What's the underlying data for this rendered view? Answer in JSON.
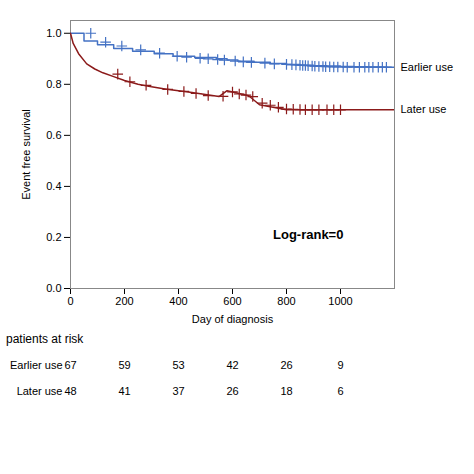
{
  "chart_data": {
    "type": "line",
    "xlabel": "Day of diagnosis",
    "ylabel": "Event free survival",
    "xlim": [
      0,
      1200
    ],
    "ylim": [
      0.0,
      1.05
    ],
    "xticks": [
      0,
      200,
      400,
      600,
      800,
      1000
    ],
    "yticks": [
      {
        "value": 0.0,
        "label": "0.0"
      },
      0.2,
      0.4,
      0.6,
      0.8,
      {
        "value": 1.0,
        "label": "1.0"
      }
    ],
    "series": [
      {
        "name": "Earlier use",
        "color": "#4472C4",
        "x": [
          0,
          50,
          50,
          100,
          100,
          160,
          160,
          230,
          230,
          310,
          310,
          380,
          380,
          460,
          460,
          540,
          540,
          580,
          580,
          620,
          620,
          680,
          680,
          740,
          740,
          800,
          800,
          850,
          850,
          900,
          900,
          950,
          950,
          1000,
          1000,
          1050,
          1050,
          1100,
          1100,
          1150,
          1150,
          1200
        ],
        "values": [
          1.0,
          1.0,
          0.97,
          0.97,
          0.955,
          0.955,
          0.94,
          0.94,
          0.93,
          0.93,
          0.92,
          0.92,
          0.91,
          0.91,
          0.905,
          0.905,
          0.9,
          0.9,
          0.895,
          0.895,
          0.89,
          0.89,
          0.886,
          0.886,
          0.882,
          0.882,
          0.878,
          0.878,
          0.875,
          0.875,
          0.873,
          0.873,
          0.872,
          0.872,
          0.87,
          0.87,
          0.869,
          0.869,
          0.868,
          0.868,
          0.867,
          0.867
        ],
        "censor_x": [
          75,
          130,
          190,
          260,
          330,
          395,
          430,
          480,
          510,
          545,
          570,
          610,
          640,
          670,
          720,
          755,
          800,
          820,
          835,
          850,
          860,
          870,
          880,
          895,
          905,
          920,
          935,
          945,
          960,
          975,
          990,
          1010,
          1025,
          1050,
          1070,
          1090,
          1105,
          1120,
          1140,
          1155,
          1170
        ],
        "censor_y": [
          1.0,
          0.965,
          0.95,
          0.935,
          0.922,
          0.91,
          0.906,
          0.902,
          0.9,
          0.897,
          0.895,
          0.891,
          0.888,
          0.886,
          0.883,
          0.88,
          0.878,
          0.877,
          0.876,
          0.875,
          0.874,
          0.874,
          0.873,
          0.872,
          0.871,
          0.87,
          0.87,
          0.869,
          0.869,
          0.868,
          0.868,
          0.868,
          0.867,
          0.867,
          0.867,
          0.867,
          0.867,
          0.867,
          0.867,
          0.867,
          0.867
        ],
        "at_risk": [
          67,
          59,
          53,
          42,
          26,
          9
        ]
      },
      {
        "name": "Later use",
        "color": "#8B1A1A",
        "x": [
          0,
          10,
          10,
          30,
          30,
          60,
          60,
          90,
          90,
          120,
          120,
          160,
          160,
          200,
          200,
          250,
          250,
          300,
          300,
          350,
          350,
          400,
          400,
          450,
          450,
          500,
          500,
          550,
          550,
          580,
          580,
          620,
          620,
          660,
          660,
          700,
          700,
          750,
          750,
          800,
          800,
          840,
          840,
          870,
          870,
          900,
          900,
          930,
          930,
          970,
          970,
          1010,
          1010,
          1200
        ],
        "values": [
          1.0,
          0.96,
          0.96,
          0.92,
          0.92,
          0.88,
          0.88,
          0.86,
          0.86,
          0.845,
          0.845,
          0.83,
          0.83,
          0.815,
          0.815,
          0.8,
          0.8,
          0.79,
          0.79,
          0.782,
          0.782,
          0.775,
          0.775,
          0.768,
          0.768,
          0.76,
          0.76,
          0.752,
          0.752,
          0.775,
          0.775,
          0.765,
          0.765,
          0.755,
          0.755,
          0.72,
          0.72,
          0.71,
          0.71,
          0.7,
          0.7,
          0.7,
          0.7,
          0.7,
          0.7,
          0.7,
          0.7,
          0.7,
          0.7,
          0.7,
          0.7,
          0.7,
          0.7,
          0.7
        ],
        "censor_x": [
          175,
          220,
          280,
          360,
          420,
          465,
          510,
          565,
          600,
          625,
          650,
          675,
          710,
          740,
          770,
          800,
          825,
          850,
          870,
          895,
          920,
          950,
          975,
          1000
        ],
        "censor_y": [
          0.84,
          0.81,
          0.796,
          0.78,
          0.772,
          0.764,
          0.756,
          0.753,
          0.77,
          0.762,
          0.758,
          0.752,
          0.726,
          0.718,
          0.71,
          0.703,
          0.702,
          0.701,
          0.7,
          0.7,
          0.7,
          0.7,
          0.7,
          0.7
        ],
        "at_risk": [
          48,
          41,
          37,
          26,
          18,
          6
        ]
      }
    ],
    "annotations": [
      {
        "text": "Log-rank=0",
        "x": 750,
        "y": 0.21
      }
    ],
    "at_risk_label": "patients at risk",
    "at_risk_times": [
      0,
      200,
      400,
      600,
      800,
      1000
    ]
  }
}
